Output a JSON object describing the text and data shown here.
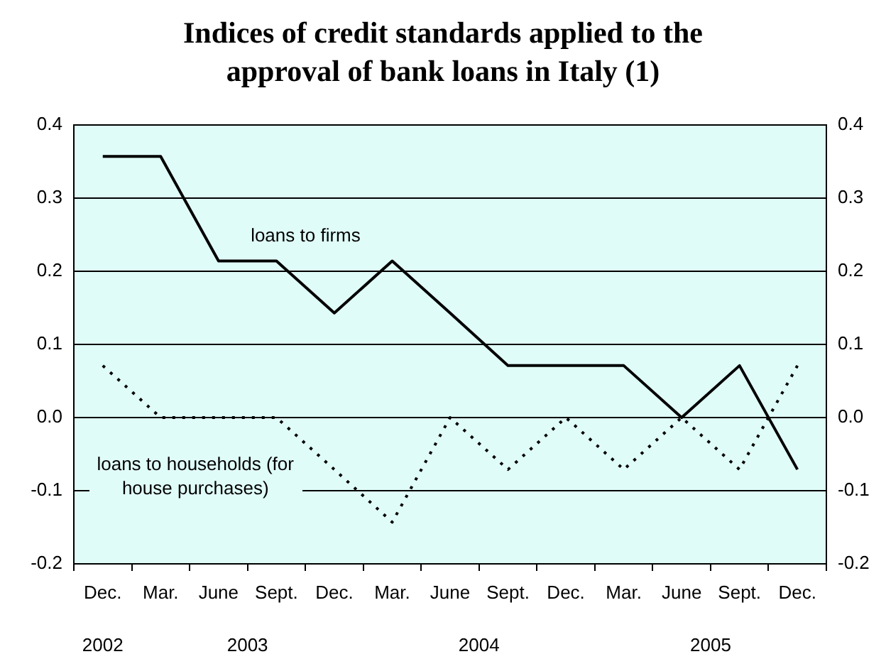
{
  "chart_data": {
    "type": "line",
    "title": "Indices of credit standards applied to the approval of bank loans in Italy (1)",
    "categories": [
      "Dec.",
      "Mar.",
      "June",
      "Sept.",
      "Dec.",
      "Mar.",
      "June",
      "Sept.",
      "Dec.",
      "Mar.",
      "June",
      "Sept.",
      "Dec."
    ],
    "series": [
      {
        "name": "loans to firms",
        "color": "#000000",
        "line_style": "solid",
        "values": [
          0.357,
          0.357,
          0.214,
          0.214,
          0.143,
          0.214,
          0.143,
          0.071,
          0.071,
          0.071,
          0.0,
          0.071,
          -0.071
        ]
      },
      {
        "name": "loans to households (for house purchases)",
        "color": "#000000",
        "line_style": "dotted",
        "values": [
          0.071,
          0.0,
          0.0,
          0.0,
          -0.071,
          -0.143,
          0.0,
          -0.071,
          0.0,
          -0.071,
          0.0,
          -0.071,
          0.071
        ]
      }
    ],
    "annotations": [
      "2002",
      "2003",
      "2004",
      "2005"
    ],
    "ylim": [
      -0.2,
      0.4
    ],
    "yticks": [
      -0.2,
      -0.1,
      {
        "value": 0,
        "label": "0.0"
      },
      0.1,
      0.2,
      0.3,
      0.4
    ],
    "y2lim": [
      -0.2,
      0.4
    ],
    "y2ticks": [
      -0.2,
      -0.1,
      {
        "value": 0,
        "label": "0.0"
      },
      0.1,
      0.2,
      0.3,
      0.4
    ],
    "grid": "y",
    "marker": "none",
    "legend": false
  }
}
